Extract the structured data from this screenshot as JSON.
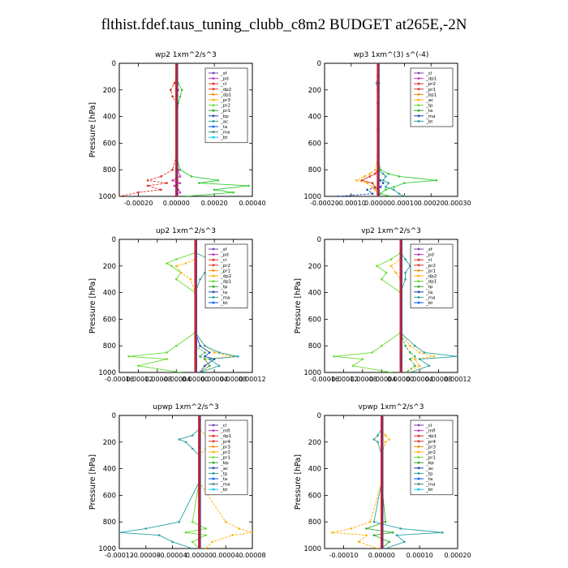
{
  "title": "flthist.fdef.taus_tuning_clubb_c8m2  BUDGET at265E,-2N",
  "chart_data": [
    {
      "type": "line",
      "title": "wp2  1xm^2/s^3",
      "ylabel": "Pressure [hPa]",
      "xlim": [
        -0.0003,
        0.0004
      ],
      "xticks": [
        -0.0002,
        0.0,
        0.0002,
        0.0004
      ],
      "xtick_labels": [
        "-0.00020",
        "0.00000",
        "0.00020",
        "0.00040"
      ],
      "ylim": [
        1000,
        0
      ],
      "yticks": [
        0,
        200,
        400,
        600,
        800,
        1000
      ],
      "ytick_labels": [
        "0",
        "200",
        "400",
        "600",
        "800",
        "1000"
      ],
      "legend": [
        "_sf",
        "_pd",
        "_cl",
        "_dp2",
        "_dp1",
        "_pr3",
        "_pr2",
        "_pr1",
        "_bp",
        "_ac",
        "_ta",
        "_ma",
        "_bt"
      ],
      "pressure": [
        0,
        100,
        150,
        200,
        250,
        300,
        500,
        700,
        800,
        850,
        880,
        900,
        920,
        950,
        970,
        1000
      ],
      "series": [
        {
          "name": "_bp",
          "color": "#33cc33",
          "values": [
            0,
            0,
            1e-05,
            3e-05,
            2e-05,
            1e-05,
            0,
            0,
            2e-05,
            8e-05,
            0.00022,
            0.00012,
            0.00038,
            0.0002,
            0.0003,
            5e-05
          ]
        },
        {
          "name": "_dp1",
          "color": "#e03020",
          "values": [
            0,
            0,
            -1e-05,
            -3e-05,
            -2e-05,
            0,
            0,
            0,
            -2e-05,
            -8e-05,
            -0.00015,
            -5e-05,
            -0.00015,
            -8e-05,
            -0.0002,
            -0.0003
          ]
        },
        {
          "name": "_pr1",
          "color": "#cc33cc",
          "values": [
            0,
            0,
            0,
            1e-05,
            0,
            0,
            0,
            0,
            1e-05,
            2e-05,
            -2e-05,
            2e-05,
            -1e-05,
            1e-05,
            2e-05,
            -1e-05
          ]
        },
        {
          "name": "_bt",
          "color": "#00ccff",
          "values": [
            0,
            0,
            0,
            0,
            0,
            0,
            0,
            0,
            0,
            0,
            0,
            0,
            0,
            0,
            0,
            0
          ]
        }
      ]
    },
    {
      "type": "line",
      "title": "wp3  1xm^(3) s^(-4)",
      "ylabel": "",
      "xlim": [
        -0.0002,
        0.0003
      ],
      "xticks": [
        -0.0002,
        -0.0001,
        0.0,
        0.0001,
        0.0002,
        0.0003
      ],
      "xtick_labels": [
        "-0.00020",
        "-0.00010",
        "0.00000",
        "0.00010",
        "0.00020",
        "0.00030"
      ],
      "ylim": [
        1000,
        0
      ],
      "yticks": [
        0,
        200,
        400,
        600,
        800,
        1000
      ],
      "ytick_labels": [
        "0",
        "200",
        "400",
        "600",
        "800",
        "1000"
      ],
      "legend": [
        "_cl",
        "_dp1",
        "_pr2",
        "_pr1",
        "_bp1",
        "_ac",
        "_tp",
        "_ta",
        "_ma",
        "_bt"
      ],
      "pressure": [
        0,
        100,
        150,
        200,
        300,
        500,
        700,
        800,
        830,
        850,
        880,
        900,
        930,
        950,
        980,
        1000
      ],
      "series": [
        {
          "name": "_bp1",
          "color": "#33cc33",
          "values": [
            0,
            0,
            5e-06,
            0,
            0,
            0,
            0,
            1e-05,
            4e-05,
            8e-05,
            0.00022,
            0.0001,
            6e-05,
            3e-05,
            1e-05,
            5e-05
          ]
        },
        {
          "name": "_pr2",
          "color": "#ffb000",
          "values": [
            0,
            0,
            0,
            0,
            0,
            0,
            0,
            -1e-05,
            -3e-05,
            -5e-05,
            -8e-05,
            -4e-05,
            -2e-05,
            -1e-05,
            0,
            0
          ]
        },
        {
          "name": "_dp1",
          "color": "#e03020",
          "values": [
            0,
            0,
            0,
            0,
            0,
            0,
            0,
            0,
            -1e-05,
            -3e-05,
            -6e-05,
            -2e-05,
            -1e-05,
            0,
            0,
            0
          ]
        },
        {
          "name": "_tp",
          "color": "#1a4db3",
          "values": [
            0,
            0,
            0,
            0,
            0,
            0,
            0,
            0,
            0,
            0,
            1e-05,
            2e-05,
            1e-05,
            -4e-05,
            -2e-05,
            -0.00015
          ]
        },
        {
          "name": "_ma",
          "color": "#2aa0a0",
          "values": [
            0,
            0,
            -5e-06,
            0,
            0,
            0,
            0,
            0,
            2e-05,
            3e-05,
            2e-05,
            4e-05,
            3e-05,
            6e-05,
            8e-05,
            0.0001
          ]
        },
        {
          "name": "_bt",
          "color": "#00ccff",
          "values": [
            0,
            0,
            0,
            0,
            0,
            0,
            0,
            0,
            0,
            0,
            0,
            0,
            0,
            0,
            0,
            0
          ]
        }
      ]
    },
    {
      "type": "line",
      "title": "up2  1xm^2/s^3",
      "ylabel": "Pressure [hPa]",
      "xlim": [
        -0.00016,
        0.00012
      ],
      "xticks": [
        -0.00016,
        -0.00012,
        -8e-05,
        -4e-05,
        0.0,
        4e-05,
        8e-05,
        0.00012
      ],
      "xtick_labels": [
        "-0.00016",
        "-0.00012",
        "-0.00008",
        "-0.00004",
        "0.00000",
        "0.00004",
        "0.00008",
        "0.00012"
      ],
      "ylim": [
        1000,
        0
      ],
      "yticks": [
        0,
        200,
        400,
        600,
        800,
        1000
      ],
      "ytick_labels": [
        "0",
        "200",
        "400",
        "600",
        "800",
        "1000"
      ],
      "legend": [
        "_sf",
        "_pd",
        "_cl",
        "_pr2",
        "_pr1",
        "_dp2",
        "_dp1",
        "_tp",
        "_ta",
        "_ma",
        "_bt"
      ],
      "pressure": [
        0,
        100,
        150,
        180,
        200,
        250,
        300,
        400,
        700,
        800,
        850,
        880,
        900,
        950,
        1000
      ],
      "series": [
        {
          "name": "_pr1",
          "color": "#66dd33",
          "values": [
            0,
            0,
            -4e-05,
            -6e-05,
            -5e-05,
            -3e-05,
            -4e-05,
            0,
            0,
            -4e-05,
            -6e-05,
            -0.00014,
            -6e-05,
            -0.00012,
            -3e-05
          ]
        },
        {
          "name": "_pr2",
          "color": "#ffb000",
          "values": [
            0,
            0,
            0,
            -2e-05,
            -4e-05,
            -3e-05,
            -1e-05,
            0,
            0,
            2e-05,
            4e-05,
            8e-05,
            2e-05,
            3e-05,
            1e-05
          ]
        },
        {
          "name": "_tp",
          "color": "#2aa0a0",
          "values": [
            0,
            0,
            3e-05,
            6e-05,
            3e-05,
            2e-05,
            1e-05,
            0,
            0,
            2e-05,
            5e-05,
            9e-05,
            3e-05,
            5e-05,
            1e-05
          ]
        },
        {
          "name": "_dp1",
          "color": "#33aa33",
          "values": [
            0,
            0,
            0,
            0,
            0,
            0,
            0,
            0,
            0,
            0,
            2e-05,
            1e-05,
            2e-05,
            3e-05,
            1e-05
          ]
        },
        {
          "name": "_ta",
          "color": "#1a4db3",
          "values": [
            0,
            0,
            0,
            0,
            0,
            0,
            0,
            0,
            0,
            1e-05,
            3e-05,
            2e-05,
            4e-05,
            2e-05,
            1e-05
          ]
        },
        {
          "name": "_sf",
          "color": "#e03020",
          "values": [
            0,
            0,
            0,
            0,
            0,
            0,
            0,
            0,
            0,
            0,
            0,
            0,
            0,
            0,
            0
          ]
        },
        {
          "name": "_bt",
          "color": "#00ccff",
          "values": [
            0,
            0,
            0,
            0,
            0,
            0,
            0,
            0,
            0,
            0,
            0,
            0,
            0,
            0,
            0
          ]
        }
      ]
    },
    {
      "type": "line",
      "title": "vp2  1xm^2/s^3",
      "ylabel": "Pressure [hPa]",
      "xlim": [
        -0.00016,
        0.00012
      ],
      "xticks": [
        -0.00016,
        -0.00012,
        -8e-05,
        -4e-05,
        0.0,
        4e-05,
        8e-05,
        0.00012
      ],
      "xtick_labels": [
        "-0.00016",
        "-0.00012",
        "-0.00008",
        "-0.00004",
        "0.00000",
        "0.00004",
        "0.00008",
        "0.00012"
      ],
      "ylim": [
        1000,
        0
      ],
      "yticks": [
        0,
        200,
        400,
        600,
        800,
        1000
      ],
      "ytick_labels": [
        "0",
        "200",
        "400",
        "600",
        "800",
        "1000"
      ],
      "legend": [
        "_sf",
        "_pd",
        "_cl",
        "_pr2",
        "_pr1",
        "_dp2",
        "_dp1",
        "_tp",
        "_ta",
        "_ma",
        "_bt"
      ],
      "pressure": [
        0,
        100,
        150,
        200,
        250,
        300,
        400,
        700,
        800,
        850,
        880,
        900,
        950,
        1000
      ],
      "series": [
        {
          "name": "_pr1",
          "color": "#66dd33",
          "values": [
            0,
            0,
            -2e-05,
            -5e-05,
            -3e-05,
            -4e-05,
            0,
            0,
            -4e-05,
            -6e-05,
            -0.00014,
            -8e-05,
            -0.0001,
            -2e-05
          ]
        },
        {
          "name": "_pr2",
          "color": "#ffb000",
          "values": [
            0,
            0,
            0,
            -2e-05,
            -1e-05,
            0,
            0,
            0,
            2e-05,
            4e-05,
            7e-05,
            3e-05,
            4e-05,
            1e-05
          ]
        },
        {
          "name": "_tp",
          "color": "#2aa0a0",
          "values": [
            0,
            0,
            1e-05,
            2e-05,
            1e-05,
            1e-05,
            0,
            0,
            3e-05,
            5e-05,
            0.00012,
            4e-05,
            6e-05,
            2e-05
          ]
        },
        {
          "name": "_dp1",
          "color": "#33aa33",
          "values": [
            0,
            0,
            0,
            0,
            0,
            0,
            0,
            0,
            1e-05,
            2e-05,
            3e-05,
            2e-05,
            3e-05,
            1e-05
          ]
        },
        {
          "name": "_sf",
          "color": "#e03020",
          "values": [
            0,
            0,
            0,
            0,
            0,
            0,
            0,
            0,
            0,
            0,
            0,
            0,
            0,
            0
          ]
        },
        {
          "name": "_bt",
          "color": "#00ccff",
          "values": [
            0,
            0,
            0,
            0,
            0,
            0,
            0,
            0,
            0,
            0,
            0,
            0,
            0,
            0
          ]
        }
      ]
    },
    {
      "type": "line",
      "title": "upwp  1xm^2/s^3",
      "ylabel": "Pressure [hPa]",
      "xlim": [
        -0.00012,
        8e-05
      ],
      "xticks": [
        -0.00012,
        -8e-05,
        -4e-05,
        0.0,
        4e-05,
        8e-05
      ],
      "xtick_labels": [
        "-0.00012",
        "-0.00008",
        "-0.00004",
        "0.00000",
        "0.00004",
        "0.00008"
      ],
      "ylim": [
        1000,
        0
      ],
      "yticks": [
        0,
        200,
        400,
        600,
        800,
        1000
      ],
      "ytick_labels": [
        "0",
        "200",
        "400",
        "600",
        "800",
        "1000"
      ],
      "legend": [
        "_cl",
        "_mfl",
        "_dp1",
        "_pr4",
        "_pr3",
        "_pr2",
        "_pr1",
        "_bp",
        "_ac",
        "_tp",
        "_ta",
        "_ma",
        "_bt"
      ],
      "pressure": [
        0,
        100,
        150,
        180,
        200,
        250,
        300,
        500,
        800,
        850,
        880,
        900,
        950,
        1000
      ],
      "series": [
        {
          "name": "_tp",
          "color": "#2aa0a0",
          "values": [
            0,
            0,
            -1e-05,
            -3e-05,
            -2e-05,
            -1e-05,
            0,
            0,
            -3e-05,
            -8e-05,
            -0.00012,
            -6e-05,
            -4e-05,
            -1e-05
          ]
        },
        {
          "name": "_pr1",
          "color": "#ffb000",
          "values": [
            0,
            0,
            1e-05,
            4e-05,
            2e-05,
            1e-05,
            0,
            0,
            4e-05,
            6e-05,
            8e-05,
            5e-05,
            2e-05,
            1e-05
          ]
        },
        {
          "name": "_bp",
          "color": "#66dd33",
          "values": [
            0,
            0,
            0,
            0,
            0,
            0,
            0,
            0,
            -1e-05,
            1e-05,
            -2e-05,
            1e-05,
            -1e-05,
            0
          ]
        },
        {
          "name": "_cl",
          "color": "#7744aa",
          "values": [
            0,
            0,
            0,
            0,
            0,
            0,
            0,
            0,
            0,
            0,
            0,
            0,
            0,
            0
          ]
        },
        {
          "name": "_bt",
          "color": "#00ccff",
          "values": [
            0,
            0,
            0,
            0,
            0,
            0,
            0,
            0,
            0,
            0,
            0,
            0,
            0,
            0
          ]
        }
      ]
    },
    {
      "type": "line",
      "title": "vpwp  1xm^2/s^3",
      "ylabel": "Pressure [hPa]",
      "xlim": [
        -0.00015,
        0.0002
      ],
      "xticks": [
        -0.0001,
        0.0,
        0.0001,
        0.0002
      ],
      "xtick_labels": [
        "-0.00010",
        "0.00000",
        "0.00010",
        "0.00020"
      ],
      "ylim": [
        1000,
        0
      ],
      "yticks": [
        0,
        200,
        400,
        600,
        800,
        1000
      ],
      "ytick_labels": [
        "0",
        "200",
        "400",
        "600",
        "800",
        "1000"
      ],
      "legend": [
        "_cl",
        "_mfl",
        "_dp1",
        "_pr4",
        "_pr3",
        "_pr2",
        "_pr1",
        "_bp",
        "_ac",
        "_tp",
        "_ta",
        "_ma",
        "_bt"
      ],
      "pressure": [
        0,
        100,
        150,
        180,
        200,
        300,
        500,
        800,
        850,
        880,
        900,
        950,
        1000
      ],
      "series": [
        {
          "name": "_tp",
          "color": "#2aa0a0",
          "values": [
            0,
            0,
            -1e-05,
            -2e-05,
            -1e-05,
            0,
            0,
            -2e-05,
            5e-05,
            0.00016,
            4e-05,
            6e-05,
            1e-05
          ]
        },
        {
          "name": "_pr1",
          "color": "#ffb000",
          "values": [
            0,
            0,
            1e-05,
            2e-05,
            1e-05,
            0,
            0,
            -3e-05,
            -8e-05,
            -0.00013,
            -4e-05,
            -6e-05,
            -1e-05
          ]
        },
        {
          "name": "_bp",
          "color": "#33aa33",
          "values": [
            0,
            0,
            0,
            0,
            0,
            0,
            0,
            1e-05,
            -4e-05,
            3e-05,
            -2e-05,
            2e-05,
            0
          ]
        },
        {
          "name": "_cl",
          "color": "#7744aa",
          "values": [
            0,
            0,
            0,
            0,
            0,
            0,
            0,
            0,
            0,
            0,
            0,
            0,
            0
          ]
        },
        {
          "name": "_bt",
          "color": "#00ccff",
          "values": [
            0,
            0,
            0,
            0,
            0,
            0,
            0,
            0,
            0,
            0,
            0,
            0,
            0
          ]
        }
      ]
    }
  ],
  "legend_palette": [
    "#7744aa",
    "#cc33cc",
    "#e03020",
    "#dd3333",
    "#ff8800",
    "#ffb000",
    "#66dd33",
    "#33aa33",
    "#1a4db3",
    "#2aa0a0",
    "#0055ff",
    "#448888",
    "#00ccff",
    "#aa44cc",
    "#cc4444"
  ]
}
